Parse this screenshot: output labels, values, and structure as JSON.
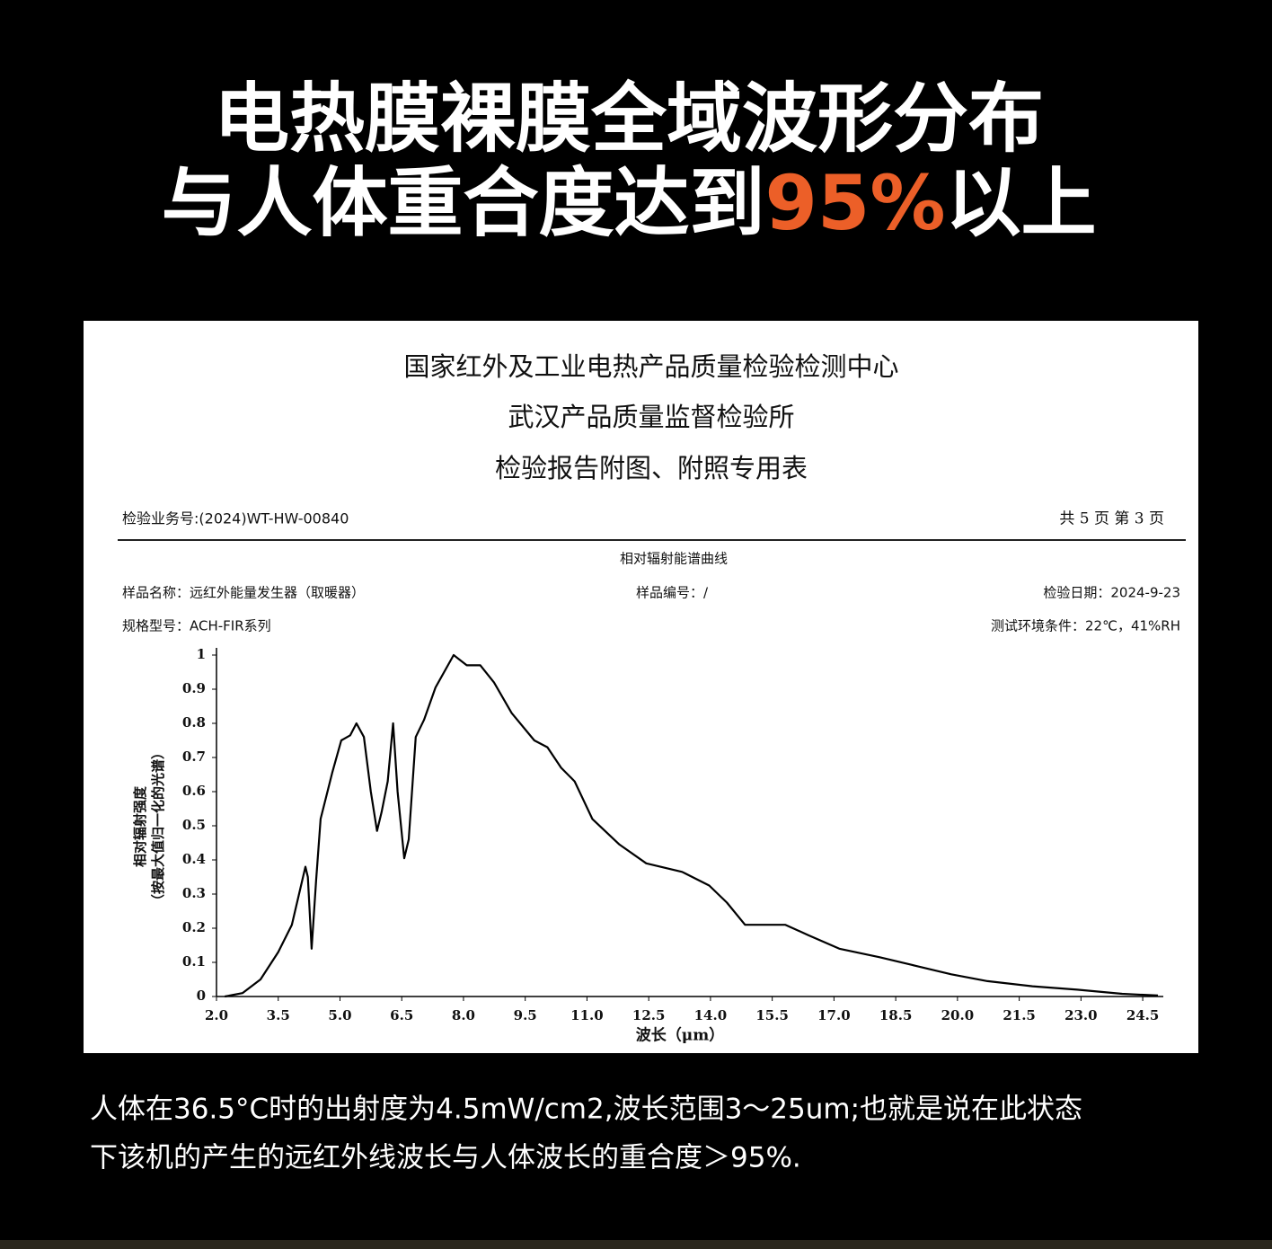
{
  "headline": {
    "line1": "电热膜裸膜全域波形分布",
    "line2_start": "与人体重合度达到",
    "line2_highlight": "95%",
    "line2_end": "以上"
  },
  "report": {
    "title_lines": [
      "国家红外及工业电热产品质量检验检测中心",
      "武汉产品质量监督检验所",
      "检验报告附图、附照专用表"
    ],
    "business_no": "检验业务号:(2024)WT-HW-00840",
    "page_info": "共 5 页 第 3 页",
    "sample_name": "样品名称：远红外能量发生器（取暖器）",
    "sample_no": "样品编号：/",
    "test_date": "检验日期：2024-9-23",
    "model": "规格型号：ACH-FIR系列",
    "environment": "测试环境条件：22℃，41%RH"
  },
  "chart_data": {
    "type": "line",
    "title": "相对辐射能谱曲线",
    "x_label": "波长（μm）",
    "y_label": [
      "相对辐射强度",
      "（按最大值归一化的光谱）"
    ],
    "x": [
      2.2,
      2.63,
      3.07,
      3.5,
      3.83,
      4.16,
      4.22,
      4.31,
      4.42,
      4.53,
      4.81,
      5.03,
      5.25,
      5.4,
      5.58,
      5.75,
      5.9,
      6.01,
      6.16,
      6.29,
      6.4,
      6.56,
      6.67,
      6.84,
      7.04,
      7.32,
      7.76,
      8.08,
      8.41,
      8.74,
      9.17,
      9.72,
      10.04,
      10.37,
      10.7,
      11.13,
      11.79,
      12.44,
      13.31,
      13.97,
      14.4,
      14.84,
      15.28,
      15.82,
      16.37,
      17.13,
      18.11,
      18.98,
      19.85,
      20.73,
      21.82,
      22.91,
      24,
      24.87
    ],
    "series": [
      {
        "color": "#000000",
        "values": [
          0,
          0.01,
          0.05,
          0.13,
          0.21,
          0.38,
          0.35,
          0.14,
          0.34,
          0.52,
          0.655,
          0.75,
          0.765,
          0.8,
          0.76,
          0.6,
          0.485,
          0.54,
          0.63,
          0.8,
          0.6,
          0.405,
          0.46,
          0.76,
          0.81,
          0.905,
          1.0,
          0.97,
          0.97,
          0.92,
          0.83,
          0.75,
          0.73,
          0.67,
          0.63,
          0.52,
          0.445,
          0.39,
          0.365,
          0.325,
          0.275,
          0.21,
          0.21,
          0.21,
          0.18,
          0.14,
          0.115,
          0.09,
          0.065,
          0.045,
          0.03,
          0.02,
          0.008,
          0.003
        ]
      }
    ],
    "xlim": [
      2,
      25
    ],
    "xticks": [
      {
        "value": 2,
        "label": "2.0"
      },
      3.5,
      {
        "value": 5,
        "label": "5.0"
      },
      6.5,
      {
        "value": 8,
        "label": "8.0"
      },
      9.5,
      {
        "value": 11,
        "label": "11.0"
      },
      12.5,
      {
        "value": 14,
        "label": "14.0"
      },
      15.5,
      {
        "value": 17,
        "label": "17.0"
      },
      18.5,
      {
        "value": 20,
        "label": "20.0"
      },
      21.5,
      {
        "value": 23,
        "label": "23.0"
      },
      24.5
    ],
    "ylim": [
      0,
      1
    ],
    "yticks": [
      0,
      0.1,
      0.2,
      0.3,
      0.4,
      0.5,
      0.6,
      0.7,
      0.8,
      0.9,
      1
    ]
  },
  "caption": [
    "人体在36.5°C时的出射度为4.5mW/cm2,波长范围3～25um;也就是说在此状态",
    "下该机的产生的远红外线波长与人体波长的重合度＞95%."
  ]
}
